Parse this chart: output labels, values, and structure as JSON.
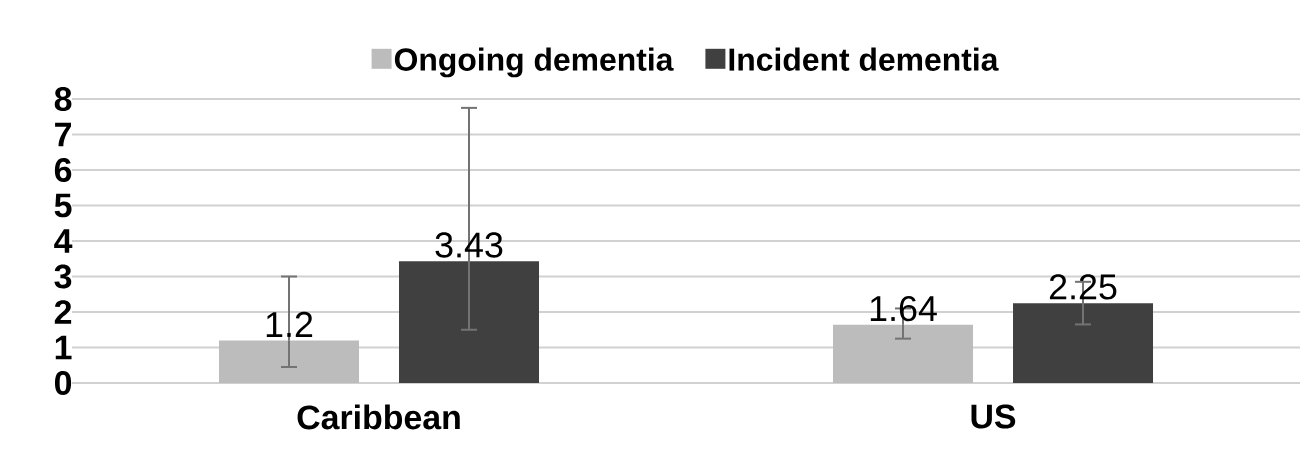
{
  "chart_data": {
    "type": "bar",
    "categories": [
      "Caribbean",
      "US"
    ],
    "series": [
      {
        "name": "Ongoing dementia",
        "color": "#bcbcbc",
        "values": [
          1.2,
          1.64
        ],
        "errors": [
          [
            0.45,
            3.0
          ],
          [
            1.25,
            2.1
          ]
        ]
      },
      {
        "name": "Incident dementia",
        "color": "#404040",
        "values": [
          3.43,
          2.25
        ],
        "errors": [
          [
            1.5,
            7.75
          ],
          [
            1.65,
            2.85
          ]
        ]
      }
    ],
    "ylim": [
      0,
      8
    ],
    "yticks": [
      0,
      1,
      2,
      3,
      4,
      5,
      6,
      7,
      8
    ],
    "grid": "y",
    "legend": "top",
    "data_labels": true
  }
}
